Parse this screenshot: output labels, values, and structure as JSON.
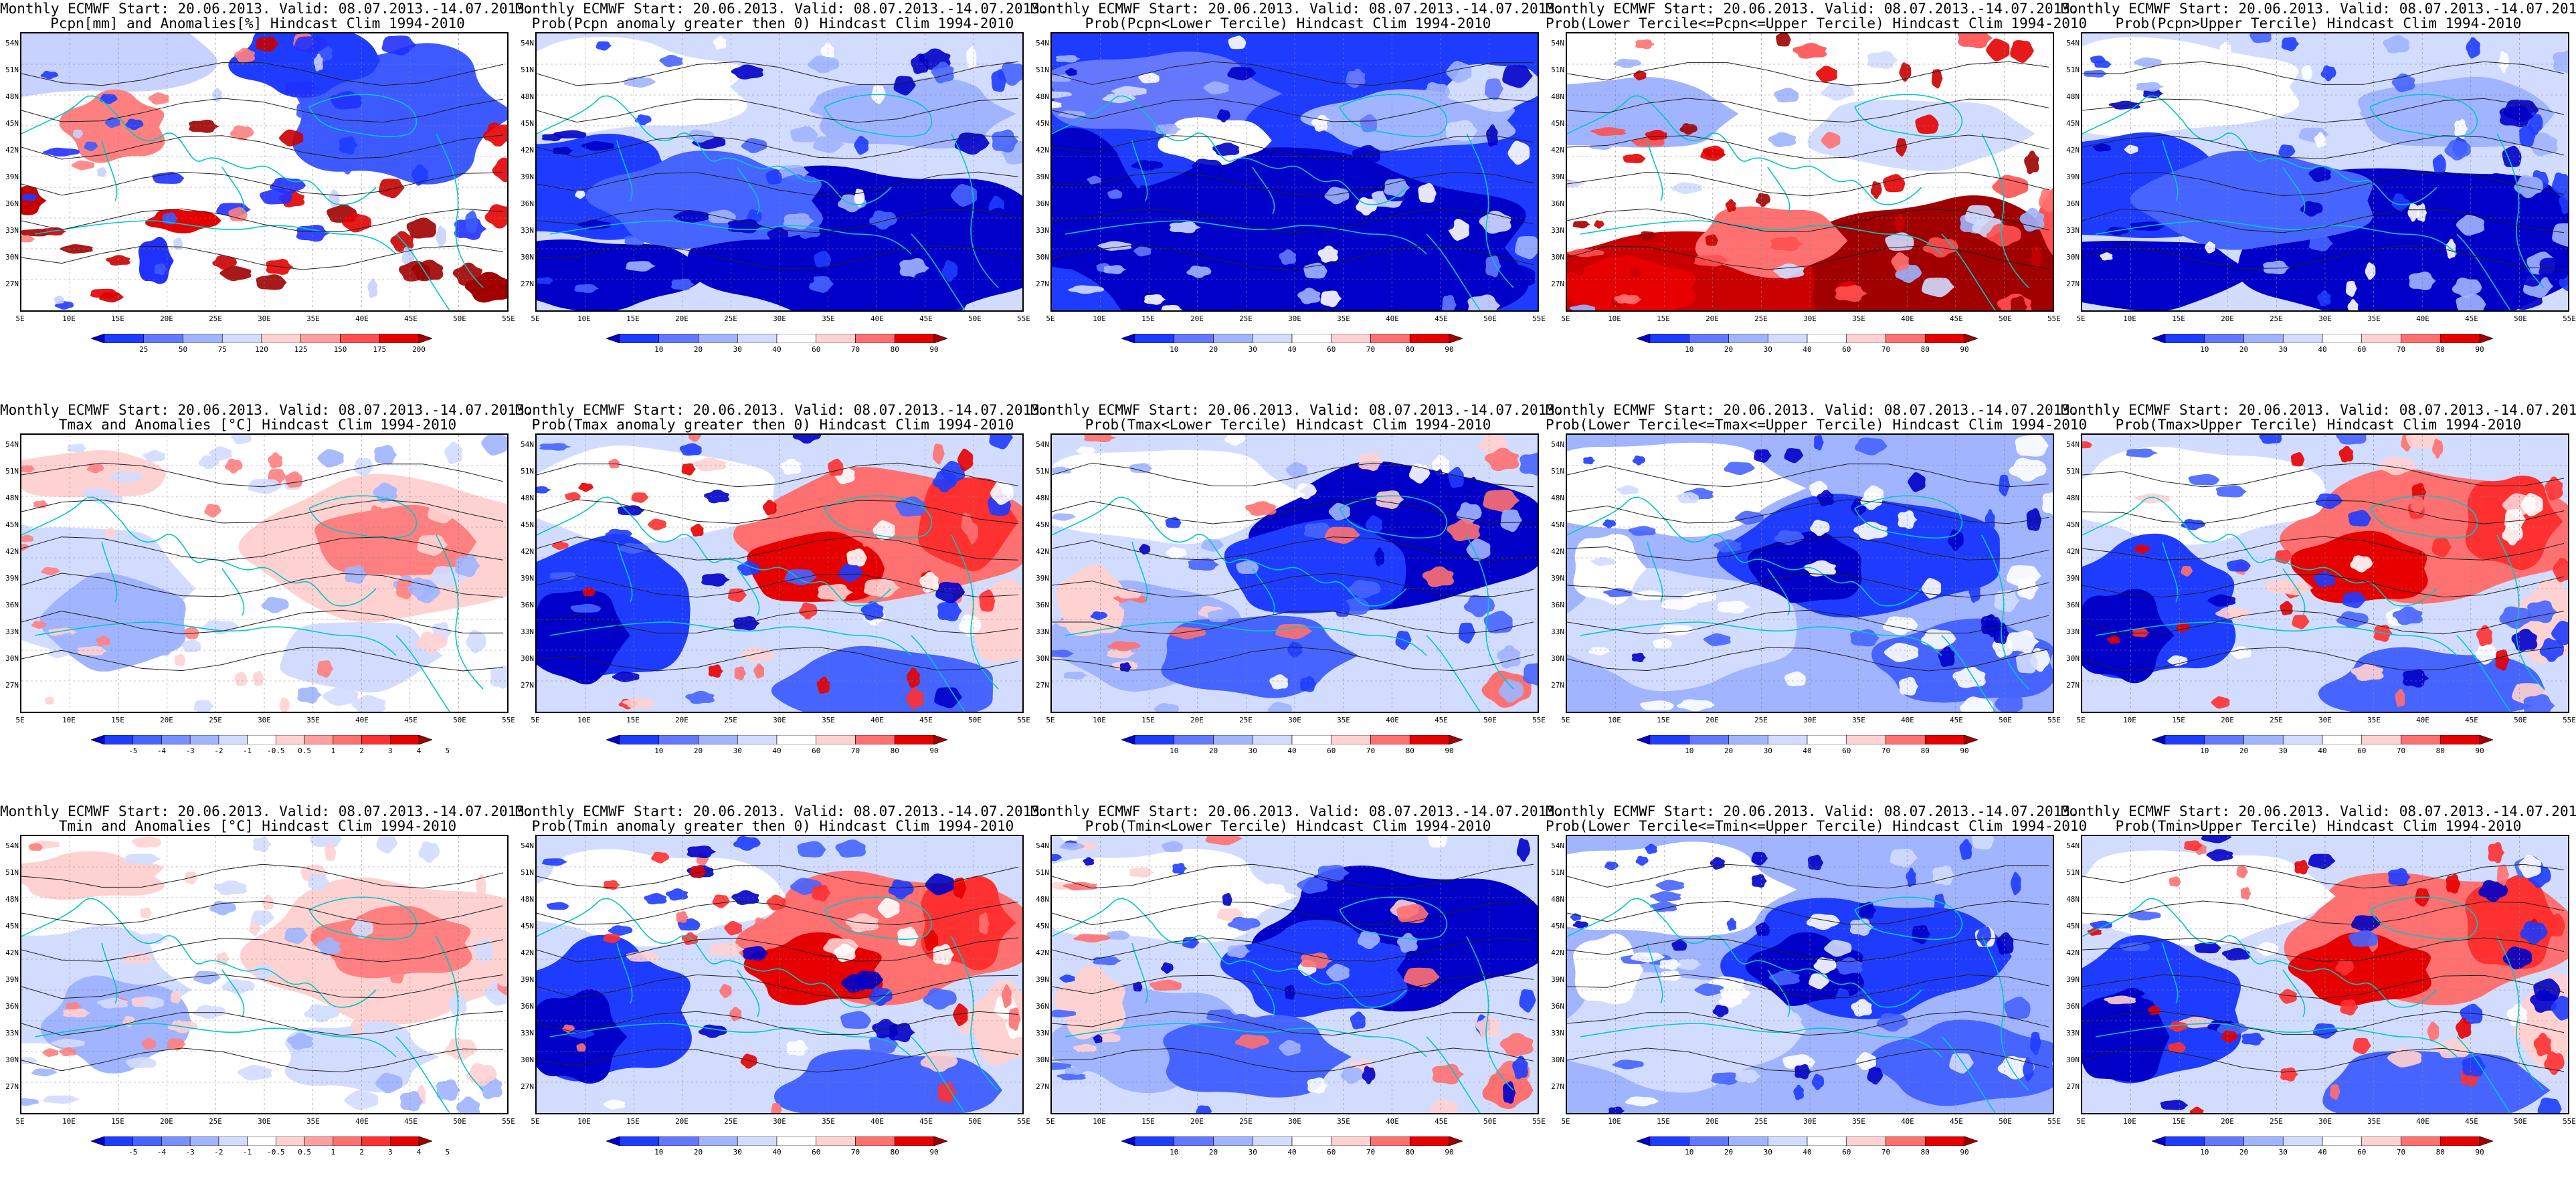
{
  "title_line1": "Monthly ECMWF Start: 20.06.2013. Valid: 08.07.2013.-14.07.2013.",
  "lat_labels": [
    "54N",
    "51N",
    "48N",
    "45N",
    "42N",
    "39N",
    "36N",
    "33N",
    "30N",
    "27N"
  ],
  "lon_labels": [
    "5E",
    "10E",
    "15E",
    "20E",
    "25E",
    "30E",
    "35E",
    "40E",
    "45E",
    "50E",
    "55E"
  ],
  "colorbars": {
    "pcpn": {
      "labels": [
        "25",
        "50",
        "75",
        "120",
        "125",
        "150",
        "175",
        "200"
      ],
      "colors": [
        "#0000c8",
        "#1e3cff",
        "#6478ff",
        "#a0b4ff",
        "#d2dcff",
        "#ffd2d2",
        "#ffa0a0",
        "#ff5050",
        "#e60000",
        "#a00000"
      ]
    },
    "temp": {
      "labels": [
        "-5",
        "-4",
        "-3",
        "-2",
        "-1",
        "-0.5",
        "0.5",
        "1",
        "2",
        "3",
        "4",
        "5"
      ],
      "colors": [
        "#0000c8",
        "#1e3cff",
        "#4664ff",
        "#7890ff",
        "#a0b4ff",
        "#d2dcff",
        "#ffffff",
        "#ffd2d2",
        "#ffa0a0",
        "#ff7070",
        "#ff3030",
        "#e60000",
        "#a00000"
      ]
    },
    "prob": {
      "labels": [
        "10",
        "20",
        "30",
        "40",
        "60",
        "70",
        "80",
        "90"
      ],
      "colors": [
        "#0000c8",
        "#1e3cff",
        "#6478ff",
        "#a0b4ff",
        "#d2dcff",
        "#ffffff",
        "#ffd2d2",
        "#ff7070",
        "#e60000",
        "#a00000"
      ]
    }
  },
  "panels": [
    {
      "row": 0,
      "col": 0,
      "line2": "Pcpn[mm] and Anomalies[%] Hindcast Clim 1994-2010",
      "cbar": "pcpn",
      "style": "pcpn"
    },
    {
      "row": 0,
      "col": 1,
      "line2": "Prob(Pcpn anomaly greater then 0) Hindcast Clim 1994-2010",
      "cbar": "prob",
      "style": "blue"
    },
    {
      "row": 0,
      "col": 2,
      "line2": "Prob(Pcpn<Lower Tercile) Hindcast Clim 1994-2010",
      "cbar": "prob",
      "style": "deepblue"
    },
    {
      "row": 0,
      "col": 3,
      "line2": "Prob(Lower Tercile<=Pcpn<=Upper Tercile) Hindcast Clim 1994-2010",
      "cbar": "prob",
      "style": "redsouth"
    },
    {
      "row": 0,
      "col": 4,
      "line2": "Prob(Pcpn>Upper Tercile) Hindcast Clim 1994-2010",
      "cbar": "prob",
      "style": "blue"
    },
    {
      "row": 1,
      "col": 0,
      "line2": "Tmax and Anomalies [°C] Hindcast Clim 1994-2010",
      "cbar": "temp",
      "style": "warmeast"
    },
    {
      "row": 1,
      "col": 1,
      "line2": "Prob(Tmax anomaly greater then 0) Hindcast Clim 1994-2010",
      "cbar": "prob",
      "style": "redeast"
    },
    {
      "row": 1,
      "col": 2,
      "line2": "Prob(Tmax<Lower Tercile) Hindcast Clim 1994-2010",
      "cbar": "prob",
      "style": "blueeast"
    },
    {
      "row": 1,
      "col": 3,
      "line2": "Prob(Lower Tercile<=Tmax<=Upper Tercile) Hindcast Clim 1994-2010",
      "cbar": "prob",
      "style": "mixed"
    },
    {
      "row": 1,
      "col": 4,
      "line2": "Prob(Tmax>Upper Tercile) Hindcast Clim 1994-2010",
      "cbar": "prob",
      "style": "redeast"
    },
    {
      "row": 2,
      "col": 0,
      "line2": "Tmin and Anomalies [°C] Hindcast Clim 1994-2010",
      "cbar": "temp",
      "style": "warmeast"
    },
    {
      "row": 2,
      "col": 1,
      "line2": "Prob(Tmin anomaly greater then 0) Hindcast Clim 1994-2010",
      "cbar": "prob",
      "style": "redeast"
    },
    {
      "row": 2,
      "col": 2,
      "line2": "Prob(Tmin<Lower Tercile) Hindcast Clim 1994-2010",
      "cbar": "prob",
      "style": "blueeast"
    },
    {
      "row": 2,
      "col": 3,
      "line2": "Prob(Lower Tercile<=Tmin<=Upper Tercile) Hindcast Clim 1994-2010",
      "cbar": "prob",
      "style": "mixed"
    },
    {
      "row": 2,
      "col": 4,
      "line2": "Prob(Tmin>Upper Tercile) Hindcast Clim 1994-2010",
      "cbar": "prob",
      "style": "redeast"
    }
  ]
}
